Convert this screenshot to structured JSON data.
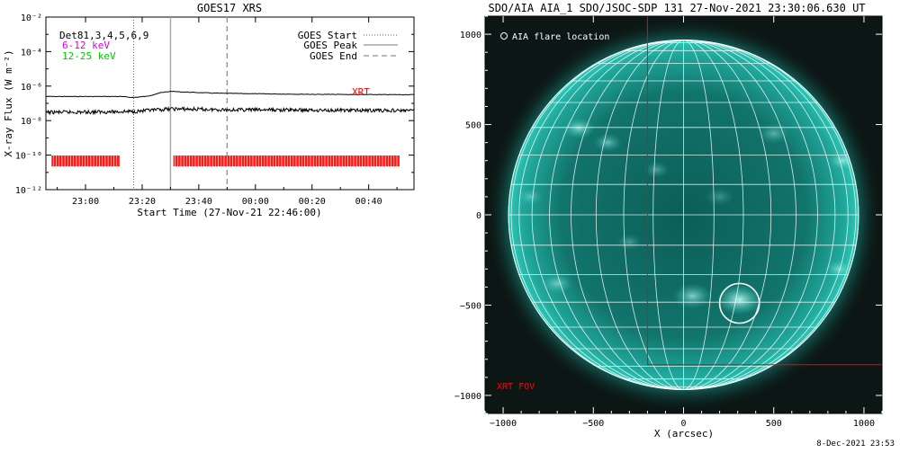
{
  "left_panel": {
    "title": "GOES17 XRS",
    "legend_left": [
      {
        "text": "Det81,3,4,5,6,9",
        "color": "#000000"
      },
      {
        "text": "6-12 keV",
        "color": "#dd00dd"
      },
      {
        "text": "12-25 keV",
        "color": "#00cc00"
      }
    ],
    "legend_right": [
      {
        "text": "GOES Start",
        "style": "dotted"
      },
      {
        "text": "GOES Peak",
        "style": "solid"
      },
      {
        "text": "GOES End",
        "style": "dashed"
      }
    ],
    "xrt_label": "XRT",
    "ylabel": "X-ray Flux (W m⁻²)",
    "xlabel": "Start Time (27-Nov-21 22:46:00)"
  },
  "right_panel": {
    "title": "SDO/AIA AIA_1 SDO/JSOC-SDP 131 27-Nov-2021 23:30:06.630 UT",
    "flare_legend": "AIA flare location",
    "xrt_fov_label": "XRT FOV",
    "xlabel": "X (arcsec)",
    "footer": "8-Dec-2021 23:53"
  },
  "colors": {
    "xrt": "#ff0000",
    "sun": "#0f8f86",
    "sun_bright": "#a8fff4",
    "grid": "#ffffff"
  },
  "chart_data": [
    {
      "type": "line",
      "title": "GOES17 XRS",
      "xlabel": "Start Time (27-Nov-21 22:46:00)",
      "ylabel": "X-ray Flux (W m⁻²)",
      "xlim_minutes_after_start": [
        0,
        130
      ],
      "ylim": [
        1e-12,
        0.01
      ],
      "yscale": "log",
      "x_ticks": [
        {
          "label": "23:00",
          "minutes": 14
        },
        {
          "label": "23:20",
          "minutes": 34
        },
        {
          "label": "23:40",
          "minutes": 54
        },
        {
          "label": "00:00",
          "minutes": 74
        },
        {
          "label": "00:20",
          "minutes": 94
        },
        {
          "label": "00:40",
          "minutes": 114
        }
      ],
      "y_ticks": [
        {
          "label": "10⁻¹²",
          "value": 1e-12
        },
        {
          "label": "10⁻¹⁰",
          "value": 1e-10
        },
        {
          "label": "10⁻⁸",
          "value": 1e-08
        },
        {
          "label": "10⁻⁶",
          "value": 1e-06
        },
        {
          "label": "10⁻⁴",
          "value": 0.0001
        },
        {
          "label": "10⁻²",
          "value": 0.01
        }
      ],
      "goes_start_minutes": 31,
      "goes_peak_minutes": 44,
      "goes_end_minutes": 64,
      "series": [
        {
          "name": "6-12 keV",
          "x": [
            0,
            15,
            26,
            31,
            36,
            40,
            44,
            48,
            54,
            60,
            64,
            80,
            100,
            120,
            130
          ],
          "y": [
            2.5e-07,
            2.5e-07,
            2.5e-07,
            2.2e-07,
            2.6e-07,
            4e-07,
            5e-07,
            4.6e-07,
            4.2e-07,
            3.9e-07,
            3.8e-07,
            3.5e-07,
            3.3e-07,
            3.2e-07,
            3.2e-07
          ]
        },
        {
          "name": "12-25 keV",
          "x": [
            0,
            20,
            31,
            40,
            44,
            54,
            64,
            80,
            100,
            120,
            130
          ],
          "y": [
            3e-08,
            3.2e-08,
            3.4e-08,
            4.2e-08,
            4.8e-08,
            4.5e-08,
            4.3e-08,
            4.2e-08,
            4e-08,
            3.9e-08,
            3.8e-08
          ]
        }
      ],
      "xrt_intervals_minutes": [
        [
          2,
          26
        ],
        [
          45,
          125
        ]
      ]
    },
    {
      "type": "scatter",
      "title": "SDO/AIA AIA_1 SDO/JSOC-SDP 131 27-Nov-2021 23:30:06.630 UT",
      "xlabel": "X (arcsec)",
      "xlim": [
        -1100,
        1100
      ],
      "ylim": [
        -1100,
        1100
      ],
      "x_ticks": [
        -1000,
        -500,
        0,
        500,
        1000
      ],
      "y_ticks": [
        -1000,
        -500,
        0,
        500,
        1000
      ],
      "solar_radius_arcsec": 970,
      "flare_location": {
        "x": 310,
        "y": -490,
        "radius": 110
      },
      "xrt_fov": {
        "x0": -200,
        "y0": -830,
        "x1": 1100,
        "y1": 1100
      }
    }
  ]
}
